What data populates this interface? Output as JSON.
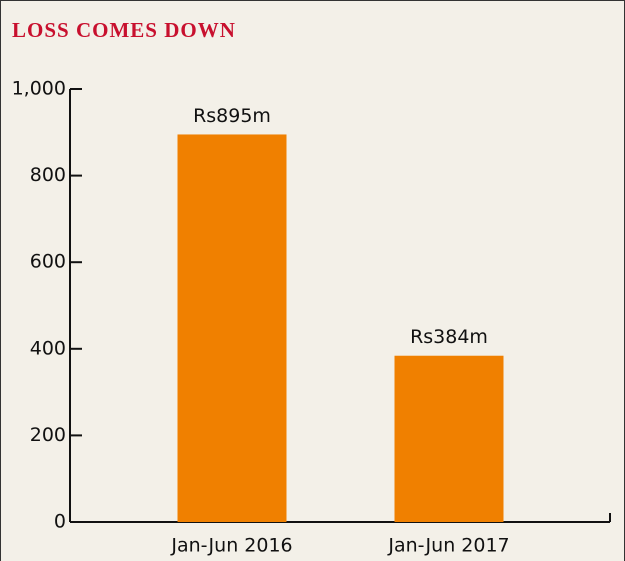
{
  "chart_data": {
    "type": "bar",
    "title": "LOSS COMES DOWN",
    "categories": [
      "Jan-Jun 2016",
      "Jan-Jun 2017"
    ],
    "values": [
      895,
      384
    ],
    "value_labels": [
      "Rs895m",
      "Rs384m"
    ],
    "color": "#f08000",
    "ylim": [
      0,
      1000
    ],
    "yticks": [
      0,
      200,
      400,
      600,
      800,
      {
        "value": 1000,
        "label": "1,000"
      }
    ],
    "grid": false
  }
}
